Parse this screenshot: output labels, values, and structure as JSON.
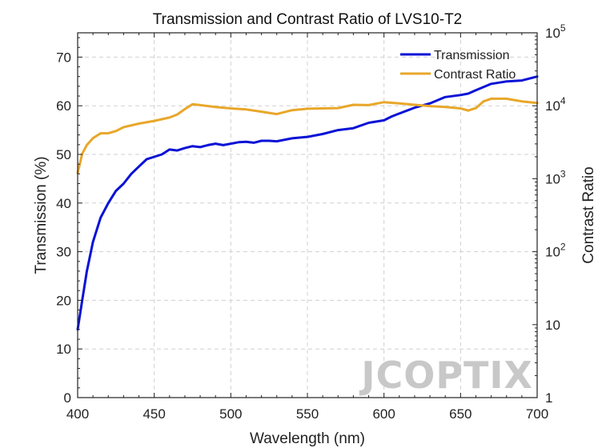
{
  "chart_data": {
    "type": "line",
    "title": "Transmission and Contrast Ratio of LVS10-T2",
    "xlabel": "Wavelength (nm)",
    "ylabel_left": "Transmission (%)",
    "ylabel_right": "Contrast Ratio",
    "xlim": [
      400,
      700
    ],
    "ylim_left": [
      0,
      75
    ],
    "ylim_right": [
      1,
      100000
    ],
    "right_scale": "log",
    "x_ticks": [
      "400",
      "450",
      "500",
      "550",
      "600",
      "650",
      "700"
    ],
    "y_left_ticks": [
      "0",
      "10",
      "20",
      "30",
      "40",
      "50",
      "60",
      "70"
    ],
    "y_right_ticks": [
      {
        "base": "1",
        "exp": ""
      },
      {
        "base": "10",
        "exp": ""
      },
      {
        "base": "10",
        "exp": "2"
      },
      {
        "base": "10",
        "exp": "3"
      },
      {
        "base": "10",
        "exp": "4"
      },
      {
        "base": "10",
        "exp": "5"
      }
    ],
    "grid": true,
    "legend_position": "top-right",
    "series": [
      {
        "name": "Transmission",
        "axis": "left",
        "color": "#0a12d6",
        "x": [
          400,
          403,
          406,
          410,
          415,
          420,
          425,
          430,
          435,
          440,
          445,
          450,
          455,
          460,
          465,
          470,
          475,
          480,
          485,
          490,
          495,
          500,
          505,
          510,
          515,
          520,
          525,
          530,
          540,
          550,
          560,
          570,
          580,
          590,
          600,
          605,
          610,
          620,
          630,
          640,
          650,
          655,
          660,
          670,
          680,
          690,
          700
        ],
        "y": [
          14,
          20,
          26,
          32,
          37,
          40,
          42.5,
          44,
          46,
          47.5,
          49,
          49.5,
          50,
          51,
          50.8,
          51.3,
          51.7,
          51.5,
          51.9,
          52.2,
          51.9,
          52.2,
          52.5,
          52.6,
          52.4,
          52.8,
          52.8,
          52.7,
          53.3,
          53.6,
          54.2,
          55,
          55.4,
          56.5,
          57,
          57.8,
          58.4,
          59.6,
          60.5,
          61.8,
          62.2,
          62.5,
          63.2,
          64.5,
          65,
          65.2,
          66
        ]
      },
      {
        "name": "Contrast Ratio",
        "axis": "right",
        "color": "#e8a72a",
        "x": [
          400,
          403,
          406,
          410,
          415,
          420,
          425,
          430,
          440,
          450,
          460,
          465,
          470,
          475,
          480,
          490,
          500,
          510,
          520,
          530,
          540,
          550,
          560,
          570,
          580,
          590,
          600,
          610,
          620,
          630,
          640,
          650,
          655,
          660,
          665,
          670,
          680,
          690,
          700
        ],
        "y": [
          1200,
          2200,
          2900,
          3600,
          4200,
          4200,
          4500,
          5100,
          5700,
          6200,
          6900,
          7600,
          9000,
          10500,
          10200,
          9600,
          9200,
          8900,
          8300,
          7700,
          8700,
          9100,
          9200,
          9300,
          10300,
          10200,
          11200,
          10800,
          10300,
          9900,
          9600,
          9200,
          8600,
          9300,
          11500,
          12500,
          12500,
          11500,
          10900
        ]
      }
    ]
  },
  "watermark": "JCOPTIX"
}
